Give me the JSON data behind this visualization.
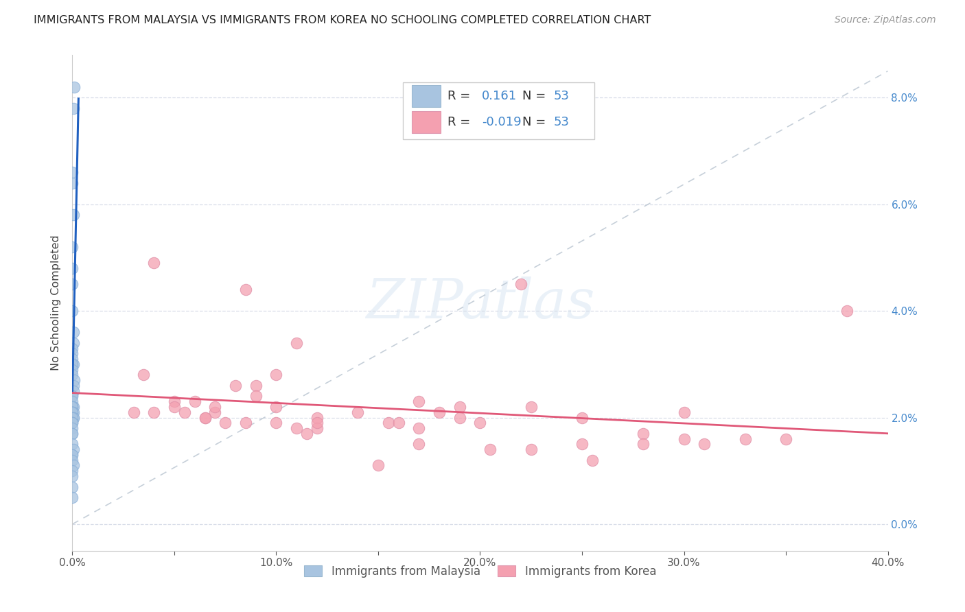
{
  "title": "IMMIGRANTS FROM MALAYSIA VS IMMIGRANTS FROM KOREA NO SCHOOLING COMPLETED CORRELATION CHART",
  "source": "Source: ZipAtlas.com",
  "ylabel": "No Schooling Completed",
  "xlim": [
    0.0,
    0.4
  ],
  "ylim": [
    -0.005,
    0.088
  ],
  "xticks": [
    0.0,
    0.05,
    0.1,
    0.15,
    0.2,
    0.25,
    0.3,
    0.35,
    0.4
  ],
  "yticks": [
    0.0,
    0.02,
    0.04,
    0.06,
    0.08
  ],
  "ytick_labels_right": [
    "0.0%",
    "2.0%",
    "4.0%",
    "6.0%",
    "8.0%"
  ],
  "xtick_labels": [
    "0.0%",
    "",
    "10.0%",
    "",
    "20.0%",
    "",
    "30.0%",
    "",
    "40.0%"
  ],
  "malaysia_color": "#a8c4e0",
  "korea_color": "#f4a0b0",
  "malaysia_line_color": "#2060c0",
  "korea_line_color": "#e05878",
  "diagonal_color": "#b8c4d0",
  "background_color": "#ffffff",
  "grid_color": "#d8dde8",
  "malaysia_x": [
    0.0005,
    0.001,
    0.0,
    0.0,
    0.0005,
    0.0,
    0.0,
    0.0,
    0.0,
    0.0005,
    0.0005,
    0.0,
    0.0,
    0.0,
    0.0,
    0.0005,
    0.0,
    0.0,
    0.0,
    0.001,
    0.0005,
    0.0005,
    0.0,
    0.0,
    0.0,
    0.0005,
    0.0,
    0.0,
    0.0,
    0.0,
    0.0,
    0.0005,
    0.0,
    0.0,
    0.0005,
    0.0005,
    0.0,
    0.0,
    0.0,
    0.0,
    0.0,
    0.0,
    0.0,
    0.0,
    0.0005,
    0.0,
    0.0,
    0.0,
    0.0005,
    0.0,
    0.0,
    0.0,
    0.0
  ],
  "malaysia_y": [
    0.078,
    0.082,
    0.066,
    0.064,
    0.058,
    0.052,
    0.048,
    0.045,
    0.04,
    0.036,
    0.034,
    0.033,
    0.032,
    0.031,
    0.03,
    0.03,
    0.03,
    0.029,
    0.028,
    0.027,
    0.026,
    0.025,
    0.024,
    0.024,
    0.023,
    0.022,
    0.022,
    0.022,
    0.022,
    0.021,
    0.021,
    0.021,
    0.021,
    0.021,
    0.02,
    0.02,
    0.02,
    0.019,
    0.019,
    0.019,
    0.018,
    0.017,
    0.017,
    0.015,
    0.014,
    0.013,
    0.013,
    0.012,
    0.011,
    0.01,
    0.009,
    0.007,
    0.005
  ],
  "korea_x": [
    0.04,
    0.085,
    0.22,
    0.1,
    0.08,
    0.035,
    0.09,
    0.09,
    0.11,
    0.07,
    0.03,
    0.05,
    0.05,
    0.06,
    0.07,
    0.065,
    0.055,
    0.04,
    0.1,
    0.12,
    0.14,
    0.18,
    0.17,
    0.225,
    0.19,
    0.3,
    0.38,
    0.25,
    0.12,
    0.065,
    0.19,
    0.155,
    0.085,
    0.16,
    0.2,
    0.075,
    0.1,
    0.11,
    0.17,
    0.12,
    0.115,
    0.28,
    0.3,
    0.35,
    0.33,
    0.28,
    0.31,
    0.25,
    0.17,
    0.205,
    0.225,
    0.255,
    0.15
  ],
  "korea_y": [
    0.049,
    0.044,
    0.045,
    0.028,
    0.026,
    0.028,
    0.026,
    0.024,
    0.034,
    0.021,
    0.021,
    0.023,
    0.022,
    0.023,
    0.022,
    0.02,
    0.021,
    0.021,
    0.022,
    0.02,
    0.021,
    0.021,
    0.023,
    0.022,
    0.022,
    0.021,
    0.04,
    0.02,
    0.018,
    0.02,
    0.02,
    0.019,
    0.019,
    0.019,
    0.019,
    0.019,
    0.019,
    0.018,
    0.018,
    0.019,
    0.017,
    0.017,
    0.016,
    0.016,
    0.016,
    0.015,
    0.015,
    0.015,
    0.015,
    0.014,
    0.014,
    0.012,
    0.011
  ]
}
